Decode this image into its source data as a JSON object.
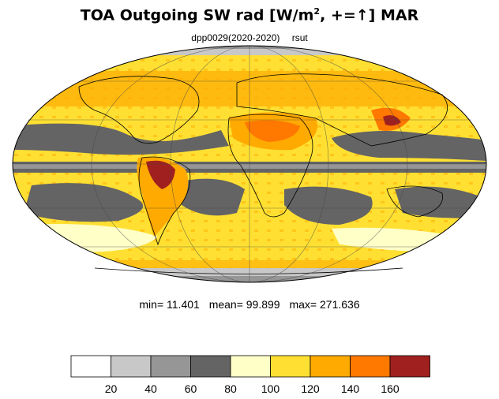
{
  "title": {
    "prefix": "TOA Outgoing SW rad [W/m",
    "superscript": "2",
    "suffix": ", +=↑] MAR"
  },
  "subtitle": {
    "run": "dpp0029(2020-2020)",
    "variable": "rsut"
  },
  "stats": {
    "min": "min=  11.401",
    "mean": "mean=  99.899",
    "max": "max= 271.636"
  },
  "colorbar": {
    "colors": [
      "#ffffff",
      "#c8c8c8",
      "#969696",
      "#646464",
      "#ffffc8",
      "#ffe032",
      "#ffaa00",
      "#ff7800",
      "#a02020"
    ],
    "tick_labels": [
      "20",
      "40",
      "60",
      "80",
      "100",
      "120",
      "140",
      "160"
    ]
  }
}
